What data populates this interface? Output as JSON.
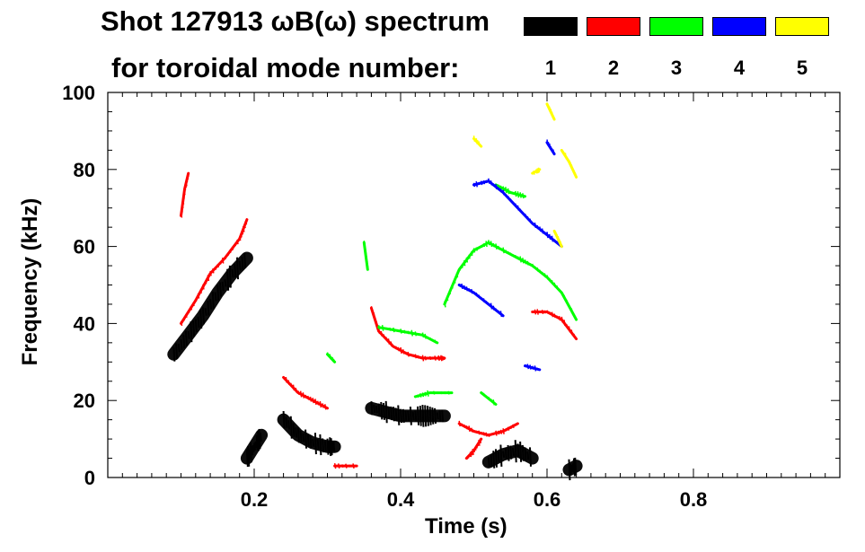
{
  "chart_data": {
    "type": "heatmap",
    "title_line1": "Shot 127913 ωB(ω) spectrum",
    "title_line2": "for toroidal mode number:",
    "xlabel": "Time (s)",
    "ylabel": "Frequency (kHz)",
    "xlim": [
      0.0,
      1.0
    ],
    "ylim": [
      0,
      100
    ],
    "x_ticks": [
      0.2,
      0.4,
      0.6,
      0.8
    ],
    "x_tick_labels": [
      "0.2",
      "0.4",
      "0.6",
      "0.8"
    ],
    "y_ticks": [
      0,
      20,
      40,
      60,
      80,
      100
    ],
    "y_tick_labels": [
      "0",
      "20",
      "40",
      "60",
      "80",
      "100"
    ],
    "legend": [
      {
        "mode": "1",
        "color": "#000000"
      },
      {
        "mode": "2",
        "color": "#ff0000"
      },
      {
        "mode": "3",
        "color": "#00ff00"
      },
      {
        "mode": "4",
        "color": "#0000ff"
      },
      {
        "mode": "5",
        "color": "#ffff00"
      }
    ],
    "series": [
      {
        "name": "n=1",
        "color": "#000000",
        "segments": [
          [
            [
              0.09,
              32
            ],
            [
              0.11,
              37
            ],
            [
              0.13,
              42
            ],
            [
              0.15,
              48
            ],
            [
              0.17,
              53
            ],
            [
              0.19,
              57
            ]
          ],
          [
            [
              0.24,
              15
            ],
            [
              0.26,
              11
            ],
            [
              0.28,
              9
            ],
            [
              0.3,
              8
            ],
            [
              0.31,
              8
            ]
          ],
          [
            [
              0.36,
              18
            ],
            [
              0.38,
              17
            ],
            [
              0.4,
              16
            ],
            [
              0.42,
              16
            ],
            [
              0.44,
              16
            ],
            [
              0.46,
              16
            ]
          ],
          [
            [
              0.52,
              4
            ],
            [
              0.54,
              6
            ],
            [
              0.56,
              7
            ],
            [
              0.58,
              5
            ]
          ],
          [
            [
              0.63,
              2
            ],
            [
              0.64,
              3
            ]
          ],
          [
            [
              0.19,
              5
            ],
            [
              0.2,
              8
            ],
            [
              0.21,
              11
            ]
          ]
        ]
      },
      {
        "name": "n=2",
        "color": "#ff0000",
        "segments": [
          [
            [
              0.1,
              68
            ],
            [
              0.105,
              75
            ],
            [
              0.11,
              79
            ]
          ],
          [
            [
              0.1,
              40
            ],
            [
              0.12,
              46
            ],
            [
              0.14,
              53
            ],
            [
              0.16,
              57
            ],
            [
              0.18,
              62
            ],
            [
              0.19,
              67
            ]
          ],
          [
            [
              0.24,
              26
            ],
            [
              0.26,
              22
            ],
            [
              0.28,
              20
            ],
            [
              0.3,
              18
            ]
          ],
          [
            [
              0.36,
              44
            ],
            [
              0.37,
              38
            ],
            [
              0.39,
              34
            ],
            [
              0.41,
              32
            ],
            [
              0.43,
              31
            ],
            [
              0.45,
              31
            ],
            [
              0.46,
              31
            ]
          ],
          [
            [
              0.48,
              14
            ],
            [
              0.5,
              12
            ],
            [
              0.52,
              11
            ],
            [
              0.54,
              12
            ],
            [
              0.56,
              14
            ]
          ],
          [
            [
              0.58,
              43
            ],
            [
              0.6,
              43
            ],
            [
              0.62,
              41
            ],
            [
              0.64,
              36
            ]
          ],
          [
            [
              0.49,
              5
            ],
            [
              0.5,
              7
            ],
            [
              0.51,
              10
            ]
          ],
          [
            [
              0.31,
              3
            ],
            [
              0.34,
              3
            ]
          ]
        ]
      },
      {
        "name": "n=3",
        "color": "#00ff00",
        "segments": [
          [
            [
              0.46,
              45
            ],
            [
              0.48,
              54
            ],
            [
              0.5,
              59
            ],
            [
              0.52,
              61
            ],
            [
              0.54,
              59
            ],
            [
              0.56,
              57
            ],
            [
              0.58,
              55
            ],
            [
              0.6,
              52
            ],
            [
              0.62,
              48
            ],
            [
              0.64,
              41
            ]
          ],
          [
            [
              0.53,
              76
            ],
            [
              0.55,
              74
            ],
            [
              0.57,
              73
            ]
          ],
          [
            [
              0.37,
              39
            ],
            [
              0.4,
              38
            ],
            [
              0.43,
              37
            ],
            [
              0.45,
              35
            ]
          ],
          [
            [
              0.42,
              21
            ],
            [
              0.44,
              22
            ],
            [
              0.47,
              22
            ]
          ],
          [
            [
              0.51,
              22
            ],
            [
              0.53,
              19
            ]
          ],
          [
            [
              0.35,
              61
            ],
            [
              0.355,
              54
            ]
          ],
          [
            [
              0.3,
              32
            ],
            [
              0.31,
              30
            ]
          ]
        ]
      },
      {
        "name": "n=4",
        "color": "#0000ff",
        "segments": [
          [
            [
              0.5,
              76
            ],
            [
              0.52,
              77
            ],
            [
              0.54,
              74
            ],
            [
              0.56,
              70
            ],
            [
              0.58,
              66
            ],
            [
              0.6,
              63
            ],
            [
              0.62,
              60
            ]
          ],
          [
            [
              0.6,
              87
            ],
            [
              0.61,
              84
            ]
          ],
          [
            [
              0.48,
              50
            ],
            [
              0.5,
              48
            ],
            [
              0.52,
              45
            ],
            [
              0.54,
              42
            ]
          ],
          [
            [
              0.57,
              29
            ],
            [
              0.59,
              28
            ]
          ]
        ]
      },
      {
        "name": "n=5",
        "color": "#ffff00",
        "segments": [
          [
            [
              0.6,
              97
            ],
            [
              0.61,
              93
            ]
          ],
          [
            [
              0.62,
              85
            ],
            [
              0.63,
              82
            ],
            [
              0.64,
              78
            ]
          ],
          [
            [
              0.58,
              79
            ],
            [
              0.59,
              80
            ]
          ],
          [
            [
              0.5,
              88
            ],
            [
              0.51,
              86
            ]
          ],
          [
            [
              0.61,
              64
            ],
            [
              0.62,
              60
            ]
          ]
        ]
      }
    ]
  }
}
